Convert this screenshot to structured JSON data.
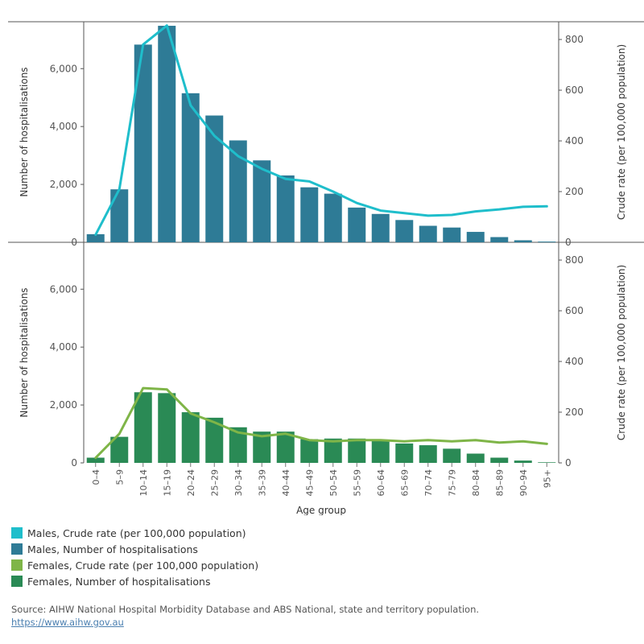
{
  "chart_data": [
    {
      "type": "bar+line",
      "panel": "Males",
      "categories": [
        "0–4",
        "5–9",
        "10–14",
        "15–19",
        "20–24",
        "25–29",
        "30–34",
        "35–39",
        "40–44",
        "45–49",
        "50–54",
        "55–59",
        "60–64",
        "65–69",
        "70–74",
        "75–79",
        "80–84",
        "85–89",
        "90–94",
        "95+"
      ],
      "series": [
        {
          "name": "Males, Number of hospitalisations",
          "kind": "bar",
          "axis": "left",
          "color": "#2e7b96",
          "values": [
            280,
            1830,
            6830,
            7480,
            5150,
            4380,
            3520,
            2830,
            2310,
            1900,
            1680,
            1200,
            980,
            770,
            570,
            510,
            360,
            180,
            70,
            25
          ]
        },
        {
          "name": "Males, Crude rate (per 100,000 population)",
          "kind": "line",
          "axis": "right",
          "color": "#1fbecb",
          "values": [
            30,
            210,
            780,
            855,
            540,
            420,
            340,
            290,
            250,
            240,
            200,
            155,
            125,
            115,
            105,
            108,
            122,
            130,
            140,
            142
          ]
        }
      ],
      "y_left": {
        "label": "Number of hospitalisations",
        "ticks": [
          "0",
          "2,000",
          "4,000",
          "6,000"
        ],
        "tick_values": [
          0,
          2000,
          4000,
          6000
        ],
        "max": 7620
      },
      "y_right": {
        "label": "Crude rate (per 100,000 population)",
        "ticks": [
          "0",
          "200",
          "400",
          "600",
          "800"
        ],
        "tick_values": [
          0,
          200,
          400,
          600,
          800
        ],
        "max": 870
      }
    },
    {
      "type": "bar+line",
      "panel": "Females",
      "categories": [
        "0–4",
        "5–9",
        "10–14",
        "15–19",
        "20–24",
        "25–29",
        "30–34",
        "35–39",
        "40–44",
        "45–49",
        "50–54",
        "55–59",
        "60–64",
        "65–69",
        "70–74",
        "75–79",
        "80–84",
        "85–89",
        "90–94",
        "95+"
      ],
      "series": [
        {
          "name": "Females, Number of hospitalisations",
          "kind": "bar",
          "axis": "left",
          "color": "#2a8a55",
          "values": [
            180,
            900,
            2440,
            2410,
            1750,
            1560,
            1230,
            1080,
            1080,
            820,
            840,
            840,
            800,
            670,
            610,
            490,
            320,
            180,
            80,
            20
          ]
        },
        {
          "name": "Females, Crude rate (per 100,000 population)",
          "kind": "line",
          "axis": "right",
          "color": "#7fb548",
          "values": [
            20,
            115,
            295,
            290,
            195,
            160,
            120,
            105,
            115,
            90,
            85,
            90,
            90,
            85,
            90,
            85,
            90,
            80,
            85,
            75
          ]
        }
      ],
      "y_left": {
        "label": "Number of hospitalisations",
        "ticks": [
          "0",
          "2,000",
          "4,000",
          "6,000"
        ],
        "tick_values": [
          0,
          2000,
          4000,
          6000
        ],
        "max": 7620
      },
      "y_right": {
        "label": "Crude rate (per 100,000 population)",
        "ticks": [
          "0",
          "200",
          "400",
          "600",
          "800"
        ],
        "tick_values": [
          0,
          200,
          400,
          600,
          800
        ],
        "max": 870
      }
    }
  ],
  "x_axis_label": "Age group",
  "legend": [
    {
      "label": "Males, Crude rate (per 100,000 population)",
      "color": "#1fbecb"
    },
    {
      "label": "Males, Number of hospitalisations",
      "color": "#2e7b96"
    },
    {
      "label": "Females, Crude rate (per 100,000 population)",
      "color": "#7fb548"
    },
    {
      "label": "Females, Number of hospitalisations",
      "color": "#2a8a55"
    }
  ],
  "source": {
    "text": "Source: AIHW National Hospital Morbidity Database and ABS National, state and territory population.",
    "link": "https://www.aihw.gov.au"
  }
}
